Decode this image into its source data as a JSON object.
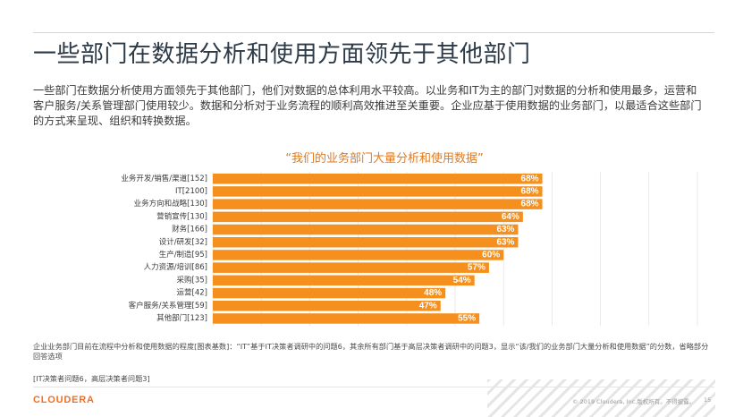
{
  "slide": {
    "title": "一些部门在数据分析和使用方面领先于其他部门",
    "intro": "一些部门在数据分析使用方面领先于其他部门，他们对数据的总体利用水平较高。以业务和IT为主的部门对数据的分析和使用最多，运营和客户服务/关系管理部门使用较少。数据和分析对于业务流程的顺利高效推进至关重要。企业应基于使用数据的业务部门，以最适合这些部门的方式来呈现、组织和转换数据。",
    "footnote": "企业业务部门目前在流程中分析和使用数据的程度[图表基数]：“IT”基于IT决策者调研中的问题6，其余所有部门基于高层决策者调研中的问题3，显示“该/我们的业务部门大量分析和使用数据”的分数，省略部分回答选项",
    "basis": "[IT决策者问题6，高层决策者问题3]",
    "logo": "CLOUDERA",
    "copyright": "© 2019 Cloudera, Inc.版权所有。不得披露。",
    "page_number": "15"
  },
  "colors": {
    "bar": "#f5901e",
    "label": "#ffffff",
    "title_accent": "#e27a1e"
  },
  "chart_data": {
    "type": "bar",
    "orientation": "horizontal",
    "title": "“我们的业务部门大量分析和使用数据”",
    "categories": [
      "业务开发/销售/渠道[152]",
      "IT[2100]",
      "业务方向和战略[130]",
      "营销宣传[130]",
      "财务[166]",
      "设计/研发[32]",
      "生产/制造[95]",
      "人力资源/培训[86]",
      "采购[35]",
      "运营[42]",
      "客户服务/关系管理[59]",
      "其他部门[123]"
    ],
    "values": [
      68,
      68,
      68,
      64,
      63,
      63,
      60,
      57,
      54,
      48,
      47,
      55
    ],
    "value_labels": [
      "68%",
      "68%",
      "68%",
      "64%",
      "63%",
      "63%",
      "60%",
      "57%",
      "54%",
      "48%",
      "47%",
      "55%"
    ],
    "xlim": [
      0,
      100
    ],
    "grid": true,
    "legend": "none"
  }
}
